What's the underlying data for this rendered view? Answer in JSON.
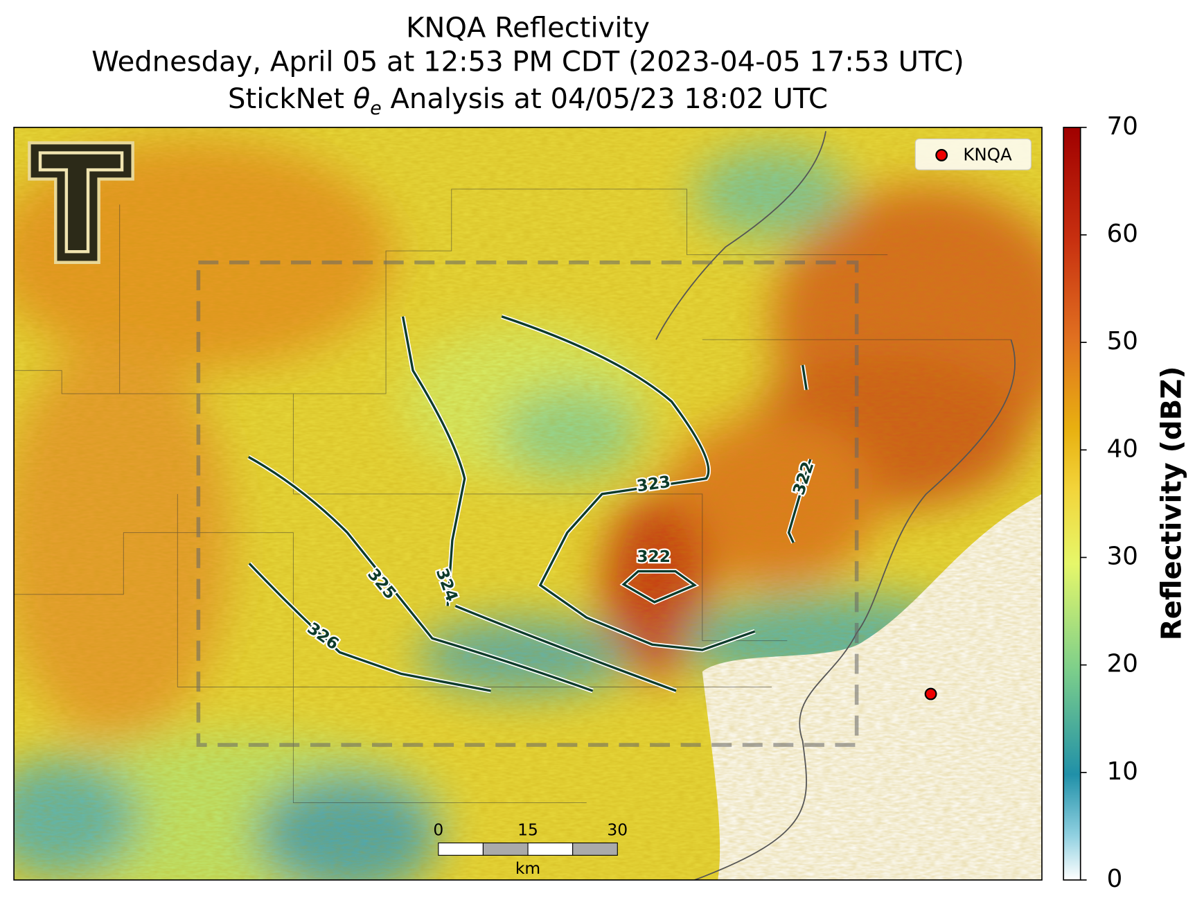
{
  "title": {
    "line1": "KNQA Reflectivity",
    "line2": "Wednesday, April 05 at 12:53 PM CDT (2023-04-05 17:53 UTC)",
    "line3": {
      "before": "StickNet ",
      "symbol": "θ",
      "subscript": "e",
      "after": " Analysis at 04/05/23 18:02 UTC"
    }
  },
  "legend": {
    "label": "KNQA"
  },
  "colorbar": {
    "label": "Reflectivity (dBZ)",
    "lim": [
      0,
      70
    ],
    "ticks": [
      0,
      10,
      20,
      30,
      40,
      50,
      60,
      70
    ]
  },
  "contour_labels": [
    "323",
    "322",
    "322",
    "324",
    "325",
    "326"
  ],
  "scale_bar": {
    "ticks": [
      0,
      15,
      30
    ],
    "unit": "km"
  }
}
